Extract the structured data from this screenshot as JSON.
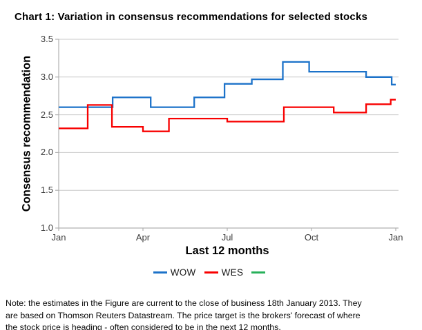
{
  "title": "Chart 1: Variation in consensus recommendations for selected stocks",
  "note": {
    "lines": [
      "Note: the estimates in the Figure are current to the close of business 18th January 2013. They",
      "are based on Thomson Reuters Datastream. The price target is the brokers' forecast of where",
      "the stock price is heading - often considered to be in the next 12 months."
    ]
  },
  "chart_data": {
    "type": "line",
    "line_style": "step",
    "title": "Chart 1: Variation in consensus recommendations for selected stocks",
    "xlabel": "Last 12 months",
    "ylabel": "Consensus recommendation",
    "ylim": [
      1.0,
      3.5
    ],
    "yticks": [
      1.0,
      1.5,
      2.0,
      2.5,
      3.0,
      3.5
    ],
    "ytick_labels": [
      "1.0",
      "1.5",
      "2.0",
      "2.5",
      "3.0",
      "3.5"
    ],
    "xtick_positions": [
      0,
      0.25,
      0.5,
      0.75,
      1.0
    ],
    "xtick_labels": [
      "Jan",
      "Apr",
      "Jul",
      "Oct",
      "Jan"
    ],
    "grid": true,
    "legend_position": "bottom",
    "colors": {
      "grid": "#C8C8C8",
      "axis": "#B0B0B0",
      "tick_text": "#3D3D3D"
    },
    "series": [
      {
        "name": "WOW",
        "color": "#1C72C9",
        "steps": [
          [
            0.0,
            2.6
          ],
          [
            0.16,
            2.73
          ],
          [
            0.273,
            2.6
          ],
          [
            0.402,
            2.73
          ],
          [
            0.492,
            2.91
          ],
          [
            0.573,
            2.97
          ],
          [
            0.665,
            3.2
          ],
          [
            0.743,
            3.07
          ],
          [
            0.912,
            3.0
          ],
          [
            0.988,
            2.9
          ]
        ],
        "x_end": 1.0
      },
      {
        "name": "WES",
        "color": "#F80000",
        "steps": [
          [
            0.0,
            2.32
          ],
          [
            0.086,
            2.63
          ],
          [
            0.158,
            2.34
          ],
          [
            0.25,
            2.28
          ],
          [
            0.327,
            2.45
          ],
          [
            0.5,
            2.41
          ],
          [
            0.668,
            2.6
          ],
          [
            0.816,
            2.53
          ],
          [
            0.912,
            2.64
          ],
          [
            0.985,
            2.7
          ]
        ],
        "x_end": 1.0
      },
      {
        "name": "",
        "color": "#27B05A",
        "steps": [],
        "x_end": 1.0
      }
    ]
  }
}
